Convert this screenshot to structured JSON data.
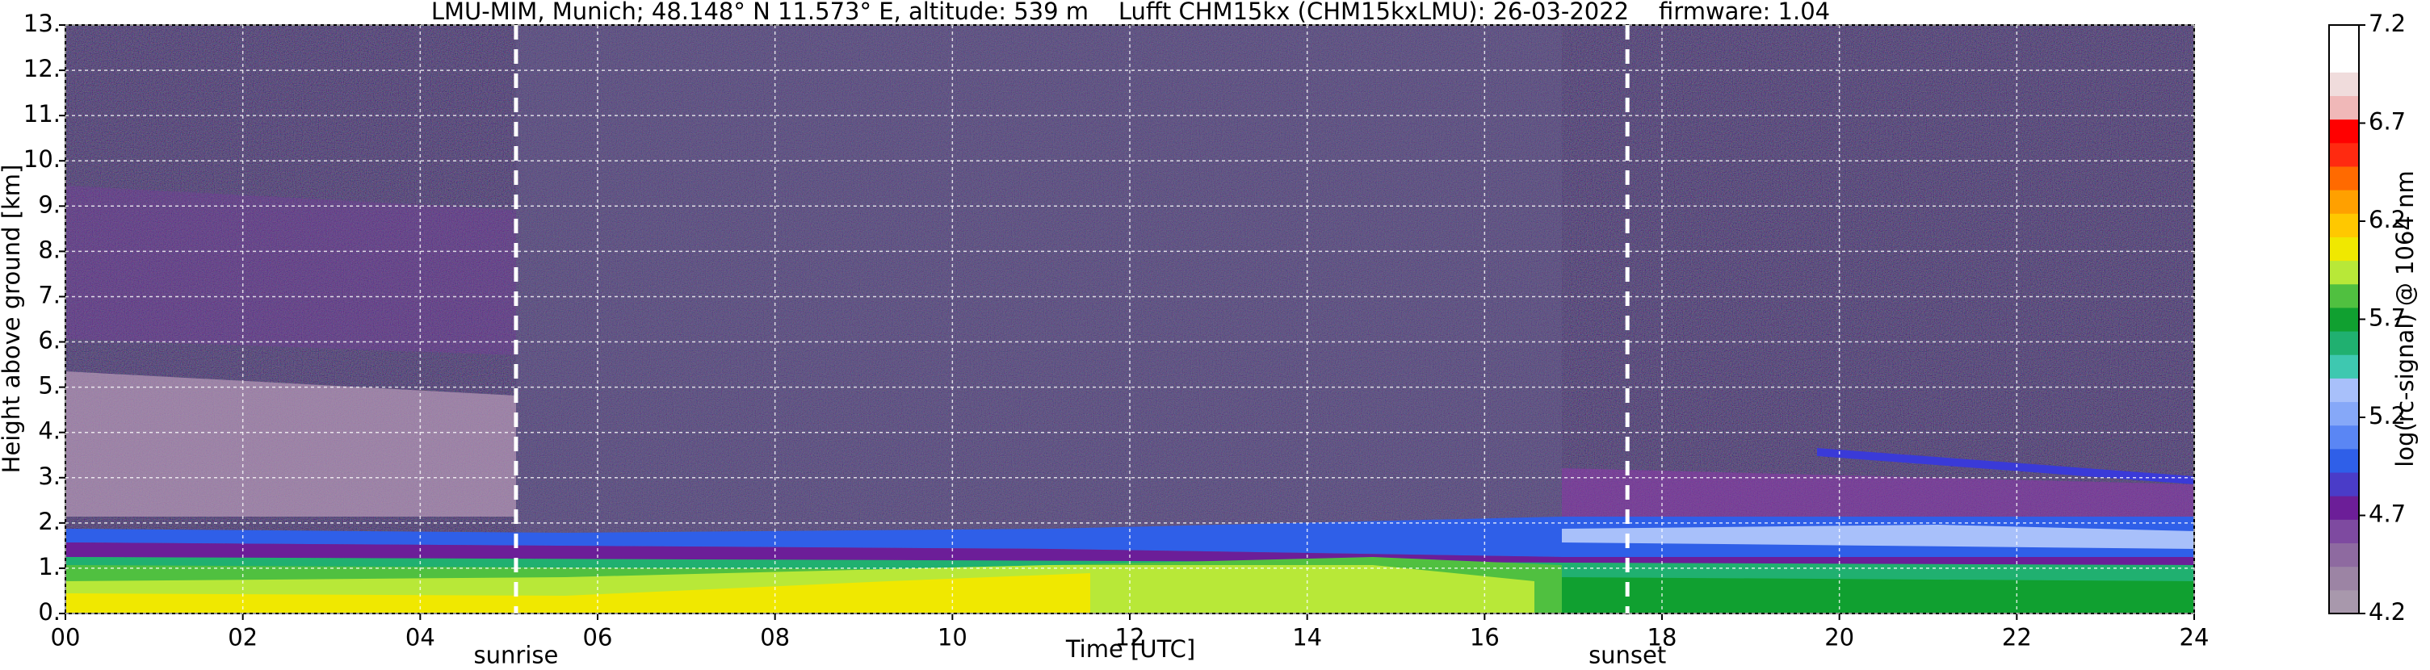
{
  "chart_data": {
    "type": "heatmap",
    "title": "LMU-MIM, Munich; 48.148° N 11.573° E, altitude: 539 m    Lufft CHM15kx (CHM15kxLMU): 26-03-2022    firmware: 1.04",
    "x_label": "Time [UTC]",
    "y_label": "Height above ground [km]",
    "xlim": [
      0,
      24
    ],
    "xticks": [
      {
        "value": 0,
        "label": "00"
      },
      {
        "value": 2,
        "label": "02"
      },
      {
        "value": 4,
        "label": "04"
      },
      {
        "value": 6,
        "label": "06"
      },
      {
        "value": 8,
        "label": "08"
      },
      10,
      12,
      14,
      16,
      18,
      20,
      22,
      24
    ],
    "ylim": [
      0,
      13
    ],
    "yticks": [
      {
        "value": 0,
        "label": "0."
      },
      {
        "value": 1,
        "label": "1."
      },
      {
        "value": 2,
        "label": "2."
      },
      {
        "value": 3,
        "label": "3."
      },
      {
        "value": 4,
        "label": "4."
      },
      {
        "value": 5,
        "label": "5."
      },
      {
        "value": 6,
        "label": "6."
      },
      {
        "value": 7,
        "label": "7."
      },
      {
        "value": 8,
        "label": "8."
      },
      {
        "value": 9,
        "label": "9."
      },
      {
        "value": 10,
        "label": "10."
      },
      {
        "value": 11,
        "label": "11."
      },
      {
        "value": 12,
        "label": "12."
      },
      {
        "value": 13,
        "label": "13."
      }
    ],
    "grid": true,
    "annotations": [
      {
        "x": 5.08,
        "label": "sunrise"
      },
      {
        "x": 17.61,
        "label": "sunset"
      }
    ],
    "colorbar": {
      "label": "log(rc-signal) @ 1064 nm",
      "clim": [
        4.2,
        7.2
      ],
      "ticks": [
        4.2,
        4.7,
        5.2,
        5.7,
        6.2,
        6.7,
        7.2
      ],
      "colors": [
        "#a898ac",
        "#9c84a4",
        "#8e6aa0",
        "#7e4aa0",
        "#6c1e98",
        "#4a3cc8",
        "#2f5fe8",
        "#5a86f4",
        "#86a8f8",
        "#a8c0fa",
        "#3ec8b0",
        "#20b070",
        "#10a030",
        "#50c040",
        "#b8e838",
        "#f0e800",
        "#ffc800",
        "#ffa000",
        "#ff6a00",
        "#ff2a10",
        "#ff0000",
        "#f0b8b8",
        "#f0dcdc",
        "#ffffff",
        "#ffffff"
      ]
    }
  }
}
